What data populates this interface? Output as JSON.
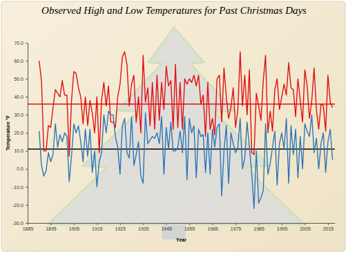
{
  "chart_data": {
    "type": "line",
    "title": "Observed High and Low Temperatures for Past Christmas Days",
    "x_label": "Year",
    "y_label": "Temperature °F",
    "x": [
      1890,
      1891,
      1892,
      1893,
      1894,
      1895,
      1896,
      1897,
      1898,
      1899,
      1900,
      1901,
      1902,
      1903,
      1904,
      1905,
      1906,
      1907,
      1908,
      1909,
      1910,
      1911,
      1912,
      1913,
      1914,
      1915,
      1916,
      1917,
      1918,
      1919,
      1920,
      1921,
      1922,
      1923,
      1924,
      1925,
      1926,
      1927,
      1928,
      1929,
      1930,
      1931,
      1932,
      1933,
      1934,
      1935,
      1936,
      1937,
      1938,
      1939,
      1940,
      1941,
      1942,
      1943,
      1944,
      1945,
      1946,
      1947,
      1948,
      1949,
      1950,
      1951,
      1952,
      1953,
      1954,
      1955,
      1956,
      1957,
      1958,
      1959,
      1960,
      1961,
      1962,
      1963,
      1964,
      1965,
      1966,
      1967,
      1968,
      1969,
      1970,
      1971,
      1972,
      1973,
      1974,
      1975,
      1976,
      1977,
      1978,
      1979,
      1980,
      1981,
      1982,
      1983,
      1984,
      1985,
      1986,
      1987,
      1988,
      1989,
      1990,
      1991,
      1992,
      1993,
      1994,
      1995,
      1996,
      1997,
      1998,
      1999,
      2000,
      2001,
      2002,
      2003,
      2004,
      2005,
      2006,
      2007,
      2008,
      2009,
      2010,
      2011,
      2012,
      2013,
      2014,
      2015,
      2016,
      2017
    ],
    "series": [
      {
        "color": "#e01010",
        "values": [
          60,
          49,
          10,
          10,
          24,
          23,
          34,
          44,
          42,
          40,
          49,
          41,
          41,
          7,
          38,
          54,
          53,
          45,
          40,
          25,
          40,
          24,
          38,
          31,
          20,
          40,
          9,
          38,
          48,
          35,
          46,
          26,
          26,
          23,
          40,
          47,
          62,
          65,
          58,
          35,
          47,
          52,
          26,
          40,
          20,
          63,
          37,
          45,
          24,
          48,
          22,
          52,
          27,
          48,
          33,
          57,
          46,
          49,
          22,
          58,
          23,
          48,
          22,
          50,
          47,
          50,
          48,
          52,
          46,
          52,
          36,
          41,
          18,
          48,
          22,
          28,
          19,
          50,
          52,
          26,
          56,
          40,
          28,
          34,
          45,
          23,
          33,
          65,
          35,
          52,
          30,
          55,
          9,
          8,
          42,
          35,
          27,
          49,
          63,
          20,
          32,
          21,
          44,
          50,
          33,
          40,
          47,
          41,
          59,
          45,
          44,
          29,
          50,
          38,
          26,
          55,
          46,
          28,
          38,
          56,
          33,
          22,
          36,
          35,
          21,
          52,
          37,
          34
        ]
      },
      {
        "color": "#2e75b6",
        "values": [
          21,
          2,
          -4,
          -1,
          9,
          4,
          8,
          25,
          12,
          19,
          15,
          20,
          18,
          -7,
          7,
          25,
          20,
          24,
          15,
          4,
          22,
          7,
          22,
          -2,
          10,
          -10,
          4,
          9,
          30,
          20,
          32,
          30,
          30,
          18,
          12,
          -3,
          24,
          28,
          9,
          6,
          29,
          2,
          8,
          15,
          -4,
          -8,
          31,
          14,
          16,
          18,
          17,
          20,
          14,
          29,
          -3,
          23,
          11,
          26,
          10,
          10,
          12,
          21,
          9,
          29,
          -6,
          28,
          20,
          24,
          -5,
          22,
          18,
          19,
          -2,
          20,
          -3,
          22,
          12,
          23,
          25,
          -15,
          10,
          24,
          -8,
          20,
          14,
          9,
          12,
          28,
          0,
          6,
          26,
          12,
          -2,
          -22,
          10,
          -19,
          -16,
          -12,
          25,
          -3,
          3,
          12,
          21,
          -9,
          14,
          20,
          11,
          28,
          -8,
          24,
          8,
          22,
          -5,
          18,
          0,
          25,
          21,
          18,
          30,
          9,
          17,
          0,
          14,
          20,
          -2,
          15,
          22,
          5
        ]
      }
    ],
    "mean_lines": [
      {
        "value": 36,
        "color": "#e01010"
      },
      {
        "value": 11,
        "color": "#000000"
      }
    ],
    "xlim": [
      1885,
      2018
    ],
    "xticks": [
      1885,
      1895,
      1905,
      1915,
      1925,
      1935,
      1945,
      1955,
      1965,
      1975,
      1985,
      1995,
      2005,
      2015
    ],
    "ylim": [
      -30,
      70
    ],
    "yticks": [
      {
        "value": -30,
        "label": "-30.0"
      },
      {
        "value": -20,
        "label": "-20.0"
      },
      {
        "value": -10,
        "label": "-10.0"
      },
      {
        "value": 0,
        "label": "0.0"
      },
      {
        "value": 10,
        "label": "10.0"
      },
      {
        "value": 20,
        "label": "20.0"
      },
      {
        "value": 30,
        "label": "30.0"
      },
      {
        "value": 40,
        "label": "40.0"
      },
      {
        "value": 50,
        "label": "50.0"
      },
      {
        "value": 60,
        "label": "60.0"
      },
      {
        "value": 70,
        "label": "70.0"
      }
    ],
    "grid": false
  }
}
